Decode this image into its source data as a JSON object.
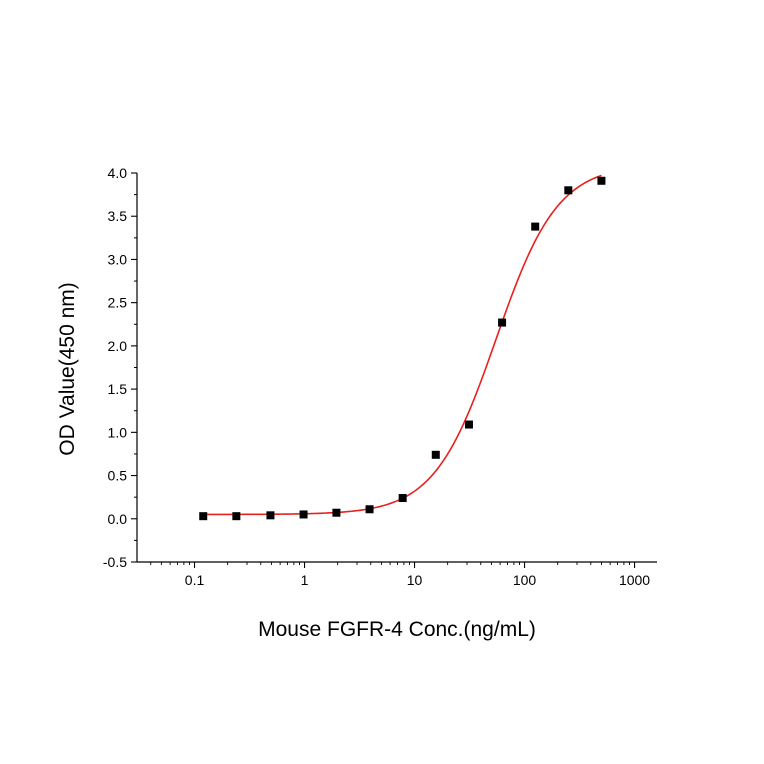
{
  "chart_data": {
    "type": "scatter",
    "title": "",
    "xlabel": "Mouse FGFR-4 Conc.(ng/mL)",
    "ylabel": "OD Value(450 nm)",
    "x_scale": "log",
    "xlim": [
      0.03,
      1600
    ],
    "ylim": [
      -0.5,
      4.0
    ],
    "x_ticks": [
      0.1,
      1,
      10,
      100,
      1000
    ],
    "x_tick_labels": [
      "0.1",
      "1",
      "10",
      "100",
      "1000"
    ],
    "y_ticks": [
      -0.5,
      0.0,
      0.5,
      1.0,
      1.5,
      2.0,
      2.5,
      3.0,
      3.5,
      4.0
    ],
    "y_tick_labels": [
      "-0.5",
      "0.0",
      "0.5",
      "1.0",
      "1.5",
      "2.0",
      "2.5",
      "3.0",
      "3.5",
      "4.0"
    ],
    "grid": false,
    "legend": "none",
    "series": [
      {
        "kind": "points",
        "marker": "square",
        "color": "#000000",
        "x": [
          0.12,
          0.24,
          0.49,
          0.98,
          1.95,
          3.9,
          7.8,
          15.6,
          31.25,
          62.5,
          125,
          250,
          500
        ],
        "y": [
          0.03,
          0.03,
          0.04,
          0.05,
          0.07,
          0.11,
          0.24,
          0.74,
          1.09,
          2.27,
          3.38,
          3.8,
          3.91
        ]
      },
      {
        "kind": "fit",
        "model": "4PL",
        "color": "#e8211c",
        "params": {
          "bottom": 0.05,
          "top": 4.1,
          "ec50": 55,
          "hill": 1.55
        },
        "x_range": [
          0.12,
          500
        ]
      }
    ]
  }
}
